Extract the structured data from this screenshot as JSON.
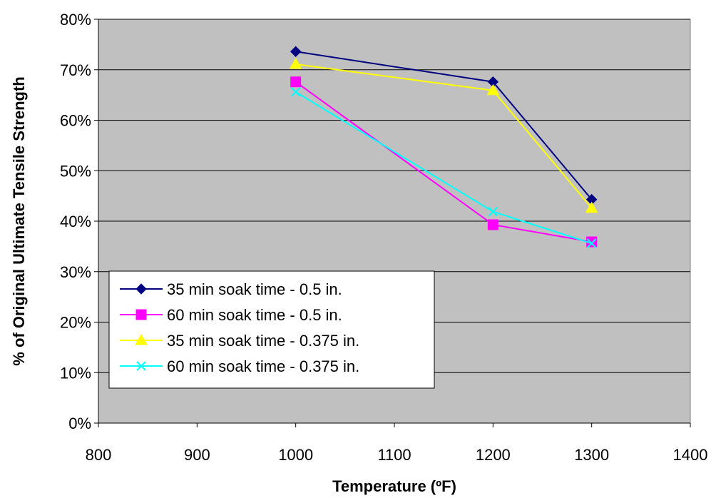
{
  "chart_data": {
    "type": "line",
    "title": "",
    "xlabel": "Temperature (ºF)",
    "ylabel": "% of Original Ultimate Tensile Strength",
    "xlim": [
      800,
      1400
    ],
    "ylim": [
      0,
      80
    ],
    "x_ticks": [
      800,
      900,
      1000,
      1100,
      1200,
      1300,
      1400
    ],
    "y_ticks": [
      0,
      10,
      20,
      30,
      40,
      50,
      60,
      70,
      80
    ],
    "y_tick_labels": [
      "0%",
      "10%",
      "20%",
      "30%",
      "40%",
      "50%",
      "60%",
      "70%",
      "80%"
    ],
    "x_tick_labels": [
      "800",
      "900",
      "1000",
      "1100",
      "1200",
      "1300",
      "1400"
    ],
    "grid": "horizontal",
    "plot_background": "#c0c0c0",
    "legend_position": "bottom-left",
    "series": [
      {
        "name": "35 min soak time - 0.5 in.",
        "color": "#000080",
        "marker": "diamond",
        "x": [
          1000,
          1200,
          1300
        ],
        "y": [
          73.6,
          67.6,
          44.3
        ]
      },
      {
        "name": "60 min soak time - 0.5 in.",
        "color": "#ff00ff",
        "marker": "square",
        "x": [
          1000,
          1200,
          1300
        ],
        "y": [
          67.6,
          39.3,
          35.9
        ]
      },
      {
        "name": "35 min soak time - 0.375 in.",
        "color": "#ffff00",
        "marker": "triangle",
        "x": [
          1000,
          1200,
          1300
        ],
        "y": [
          71.1,
          65.9,
          42.6
        ]
      },
      {
        "name": "60 min soak time - 0.375 in.",
        "color": "#00ffff",
        "marker": "x",
        "x": [
          1000,
          1200,
          1300
        ],
        "y": [
          65.6,
          41.9,
          35.6
        ]
      }
    ]
  }
}
